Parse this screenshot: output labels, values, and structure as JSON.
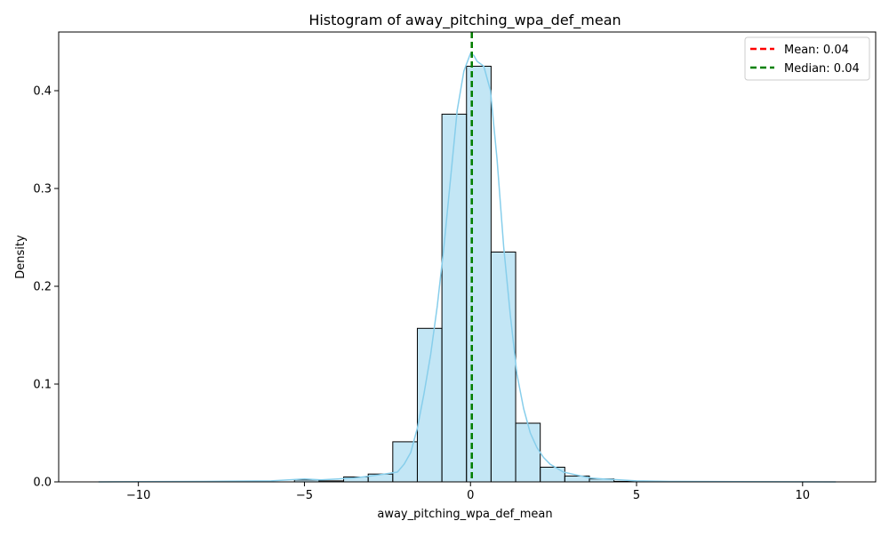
{
  "chart_data": {
    "type": "bar",
    "title": "Histogram of away_pitching_wpa_def_mean",
    "xlabel": "away_pitching_wpa_def_mean",
    "ylabel": "Density",
    "xlim": [
      -12.4,
      12.2
    ],
    "ylim": [
      0,
      0.46
    ],
    "x_ticks": [
      -10,
      -5,
      0,
      5,
      10
    ],
    "x_tick_labels": [
      "−10",
      "−5",
      "0",
      "5",
      "10"
    ],
    "y_ticks": [
      0.0,
      0.1,
      0.2,
      0.3,
      0.4
    ],
    "y_tick_labels": [
      "0.0",
      "0.1",
      "0.2",
      "0.3",
      "0.4"
    ],
    "grid": false,
    "legend_position": "top-right",
    "bar_color": "#87ceeb",
    "bin_edges": [
      -11.22,
      -10.48,
      -9.74,
      -9.0,
      -8.26,
      -7.52,
      -6.78,
      -6.04,
      -5.3,
      -4.56,
      -3.82,
      -3.08,
      -2.34,
      -1.6,
      -0.86,
      -0.12,
      0.62,
      1.36,
      2.1,
      2.84,
      3.58,
      4.32,
      5.06,
      5.8,
      6.54,
      7.28,
      8.02,
      8.76,
      9.5,
      10.24,
      10.98
    ],
    "values": [
      0.0,
      0.0,
      0.0,
      0.0,
      0.0,
      0.0,
      0.0,
      0.0,
      0.002,
      0.001,
      0.005,
      0.008,
      0.041,
      0.157,
      0.376,
      0.425,
      0.235,
      0.06,
      0.015,
      0.006,
      0.003,
      0.0005,
      0.0,
      0.0,
      0.0,
      0.0,
      0.0,
      0.0,
      0.0,
      0.0
    ],
    "kde": {
      "color": "#87ceeb",
      "x": [
        -11.2,
        -8.0,
        -6.0,
        -5.0,
        -4.5,
        -4.0,
        -3.5,
        -3.0,
        -2.6,
        -2.2,
        -2.0,
        -1.8,
        -1.6,
        -1.4,
        -1.2,
        -1.0,
        -0.8,
        -0.6,
        -0.4,
        -0.2,
        0.0,
        0.1,
        0.2,
        0.4,
        0.6,
        0.8,
        1.0,
        1.2,
        1.4,
        1.6,
        1.8,
        2.0,
        2.2,
        2.4,
        2.8,
        3.2,
        3.6,
        4.0,
        4.5,
        5.0,
        6.0,
        8.0,
        11.0
      ],
      "y": [
        0.0,
        0.0005,
        0.001,
        0.003,
        0.002,
        0.003,
        0.004,
        0.006,
        0.008,
        0.01,
        0.018,
        0.03,
        0.055,
        0.09,
        0.13,
        0.18,
        0.24,
        0.31,
        0.38,
        0.42,
        0.438,
        0.436,
        0.43,
        0.425,
        0.4,
        0.33,
        0.24,
        0.17,
        0.11,
        0.075,
        0.05,
        0.035,
        0.025,
        0.018,
        0.01,
        0.007,
        0.004,
        0.003,
        0.002,
        0.001,
        0.0005,
        0.0002,
        0.0
      ]
    },
    "lines": [
      {
        "name": "Mean: 0.04",
        "x": 0.04,
        "color": "#ff0000",
        "style": "dashed"
      },
      {
        "name": "Median: 0.04",
        "x": 0.04,
        "color": "#008000",
        "style": "dashed"
      }
    ]
  }
}
